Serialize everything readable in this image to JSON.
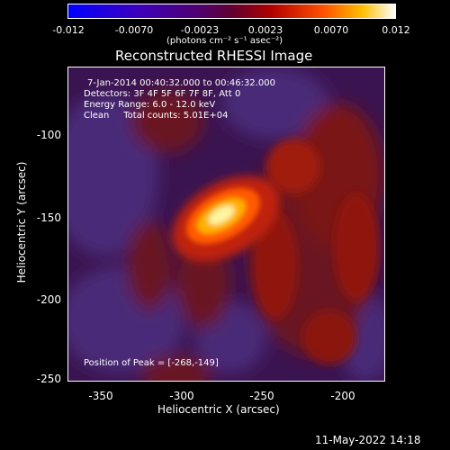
{
  "colorbar": {
    "ticks": [
      "-0.012",
      "-0.0070",
      "-0.0023",
      "0.0023",
      "0.0070",
      "0.012"
    ],
    "unit_label": "(photons cm⁻² s⁻¹ asec⁻²)"
  },
  "title": "Reconstructed RHESSI Image",
  "annotations": {
    "time_range": "7-Jan-2014 00:40:32.000 to 00:46:32.000",
    "detectors": "Detectors: 3F 4F 5F 6F 7F 8F, Att 0",
    "energy": "Energy Range: 6.0 - 12.0 keV",
    "clean": "Clean     Total counts: 5.01E+04",
    "peak": "Position of Peak = [-268,-149]"
  },
  "axes": {
    "xlabel": "Heliocentric X (arcsec)",
    "ylabel": "Heliocentric Y (arcsec)",
    "xticks": [
      "-350",
      "-300",
      "-250",
      "-200"
    ],
    "yticks": [
      "-100",
      "-150",
      "-200",
      "-250"
    ]
  },
  "footer": {
    "date": "11-May-2022 14:18"
  }
}
